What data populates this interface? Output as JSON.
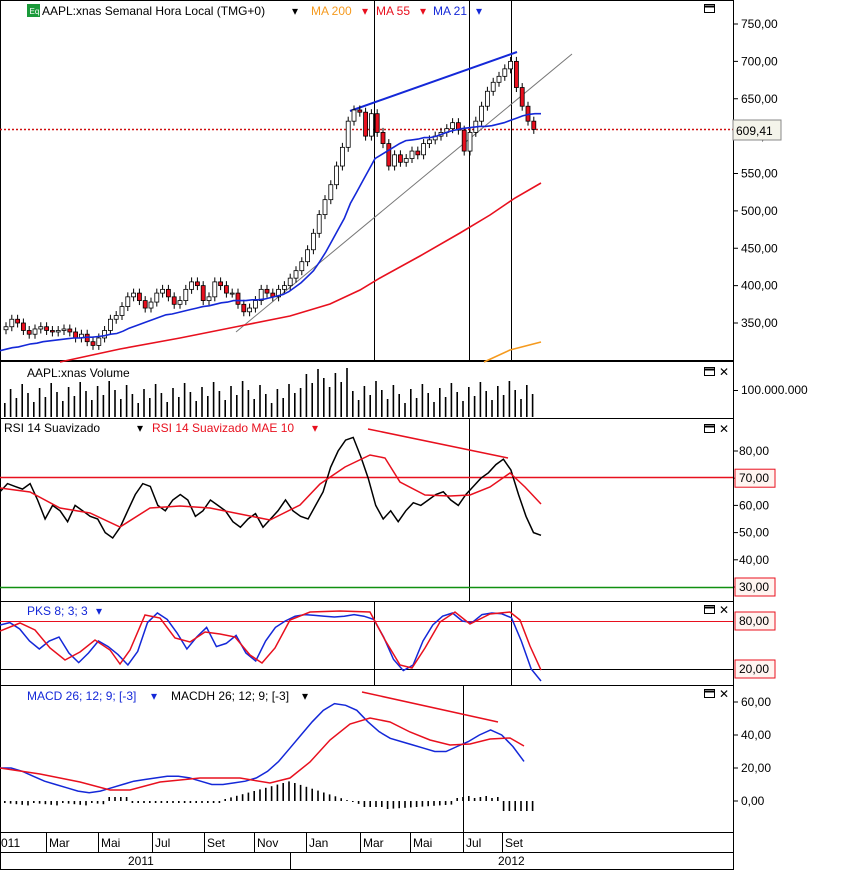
{
  "panels": {
    "price": {
      "symbol": "AAPL:xnas",
      "title": "AAPL:xnas Semanal Hora Local (TMG+0)",
      "badge": "Eq",
      "indicators": [
        {
          "label": "MA 200",
          "color": "#f59a1e"
        },
        {
          "label": "MA 55",
          "color": "#e8101e"
        },
        {
          "label": "MA 21",
          "color": "#1428d8"
        }
      ],
      "last_price": "609,41",
      "axis_ticks": [
        "750,00",
        "700,00",
        "650,00",
        "600,00",
        "550,00",
        "500,00",
        "450,00",
        "400,00",
        "350,00"
      ]
    },
    "volume": {
      "title": "AAPL:xnas Volume",
      "axis_ticks": [
        "100.000.000"
      ]
    },
    "rsi": {
      "label1": "RSI 14 Suavizado",
      "label2": "RSI 14 Suavizado MAE 10",
      "axis_ticks": [
        "80,00",
        "70,00",
        "60,00",
        "50,00",
        "40,00",
        "30,00"
      ]
    },
    "stoch": {
      "label": "PKS 8; 3; 3",
      "axis_ticks": [
        "80,00",
        "20,00"
      ]
    },
    "macd": {
      "label1": "MACD 26; 12; 9; [-3]",
      "label2": "MACDH 26; 12; 9; [-3]",
      "axis_ticks": [
        "60,00",
        "40,00",
        "20,00",
        "0,00"
      ]
    }
  },
  "time_axis": {
    "months": [
      "011",
      "Mar",
      "Mai",
      "Jul",
      "Set",
      "Nov",
      "Jan",
      "Mar",
      "Mai",
      "Jul",
      "Set"
    ],
    "years": [
      "2011",
      "2012"
    ]
  },
  "colors": {
    "ma200": "#f59a1e",
    "ma55": "#e8101e",
    "ma21": "#1428d8",
    "rsi": "#000000",
    "rsi_ma": "#e8101e",
    "stoch_k": "#1428d8",
    "stoch_d": "#e8101e",
    "macd": "#1428d8",
    "macd_signal": "#e8101e",
    "level_red": "#e8101e",
    "level_green": "#109010",
    "trend_blue": "#1428d8"
  },
  "chart_data": [
    {
      "type": "candlestick",
      "title": "AAPL:xnas Semanal Hora Local (TMG+0)",
      "ylim": [
        305,
        770
      ],
      "last": 609.41,
      "close": [
        345,
        355,
        350,
        340,
        335,
        342,
        345,
        340,
        338,
        340,
        342,
        338,
        330,
        335,
        325,
        320,
        330,
        340,
        355,
        360,
        372,
        385,
        390,
        380,
        370,
        378,
        390,
        395,
        385,
        375,
        380,
        395,
        405,
        400,
        380,
        385,
        405,
        400,
        390,
        390,
        375,
        365,
        370,
        380,
        395,
        390,
        385,
        395,
        400,
        410,
        420,
        432,
        448,
        470,
        495,
        515,
        535,
        560,
        585,
        620,
        635,
        632,
        600,
        630,
        605,
        590,
        560,
        575,
        565,
        570,
        580,
        575,
        590,
        595,
        600,
        605,
        610,
        618,
        608,
        580,
        605,
        620,
        640,
        660,
        672,
        680,
        690,
        700,
        665,
        640,
        620,
        609
      ],
      "ma21": [
        313,
        315,
        317,
        318,
        320,
        322,
        323,
        325,
        326,
        327,
        328,
        329,
        330,
        330,
        331,
        331,
        332,
        333,
        335,
        336,
        339,
        343,
        346,
        349,
        352,
        355,
        358,
        361,
        362,
        364,
        366,
        368,
        370,
        372,
        373,
        375,
        377,
        378,
        380,
        380,
        380,
        381,
        381,
        382,
        384,
        386,
        388,
        392,
        398,
        404,
        412,
        420,
        432,
        445,
        460,
        475,
        490,
        510,
        525,
        540,
        555,
        570,
        575,
        580,
        585,
        590,
        594,
        595,
        596,
        598,
        598,
        600,
        603,
        606,
        608,
        610,
        611,
        612,
        613,
        613,
        614,
        616,
        618,
        621,
        624,
        627,
        629,
        630,
        630
      ]
    },
    {
      "type": "line",
      "title": "RSI 14 Suavizado",
      "ylim": [
        28,
        90
      ],
      "levels": [
        70,
        30
      ],
      "rsi": [
        65,
        68,
        67,
        66,
        68,
        62,
        55,
        60,
        58,
        54,
        60,
        58,
        56,
        55,
        50,
        48,
        52,
        58,
        64,
        68,
        67,
        60,
        58,
        62,
        64,
        62,
        56,
        58,
        62,
        60,
        58,
        54,
        52,
        55,
        57,
        52,
        55,
        58,
        62,
        58,
        56,
        55,
        60,
        65,
        74,
        80,
        84,
        85,
        78,
        70,
        60,
        55,
        58,
        54,
        58,
        61,
        60,
        62,
        64,
        65,
        62,
        60,
        64,
        67,
        70,
        72,
        75,
        77,
        73,
        64,
        56,
        50,
        49
      ]
    },
    {
      "type": "line",
      "title": "PKS 8; 3; 3",
      "ylim": [
        5,
        97
      ],
      "levels": [
        80,
        20
      ],
      "k": [
        75,
        78,
        70,
        55,
        45,
        55,
        60,
        40,
        28,
        40,
        55,
        48,
        38,
        25,
        42,
        78,
        90,
        82,
        65,
        45,
        60,
        72,
        48,
        52,
        62,
        40,
        30,
        55,
        72,
        80,
        86,
        88,
        87,
        86,
        85,
        86,
        88,
        86,
        82,
        60,
        32,
        18,
        25,
        55,
        75,
        86,
        90,
        80,
        78,
        88,
        90,
        89,
        84,
        55,
        20,
        5
      ]
    },
    {
      "type": "line",
      "title": "MACD 26; 12; 9; [-3]",
      "ylim": [
        -20,
        68
      ],
      "macd": [
        20,
        20,
        18,
        15,
        12,
        10,
        8,
        6,
        5,
        6,
        8,
        10,
        12,
        13,
        14,
        15,
        15,
        14,
        12,
        10,
        10,
        11,
        12,
        14,
        18,
        24,
        32,
        40,
        48,
        55,
        59,
        58,
        55,
        48,
        42,
        38,
        36,
        34,
        32,
        30,
        30,
        33,
        36,
        40,
        43,
        40,
        33,
        24
      ]
    }
  ]
}
